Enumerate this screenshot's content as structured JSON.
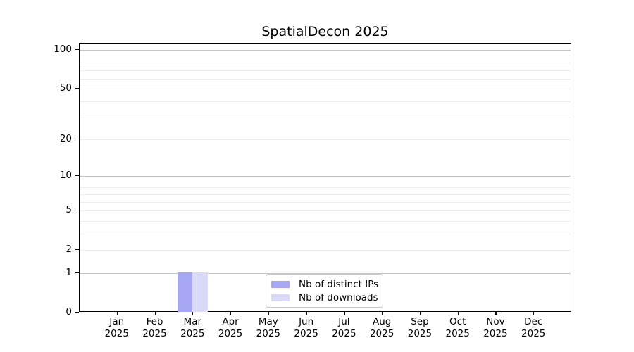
{
  "chart_data": {
    "type": "bar",
    "title": "SpatialDecon 2025",
    "x_months": [
      "Jan",
      "Feb",
      "Mar",
      "Apr",
      "May",
      "Jun",
      "Jul",
      "Aug",
      "Sep",
      "Oct",
      "Nov",
      "Dec"
    ],
    "x_year": "2025",
    "categories": [
      "Jan 2025",
      "Feb 2025",
      "Mar 2025",
      "Apr 2025",
      "May 2025",
      "Jun 2025",
      "Jul 2025",
      "Aug 2025",
      "Sep 2025",
      "Oct 2025",
      "Nov 2025",
      "Dec 2025"
    ],
    "series": [
      {
        "name": "Nb of distinct IPs",
        "color": "#a6a6f2",
        "values": [
          0,
          0,
          1,
          0,
          0,
          0,
          0,
          0,
          0,
          0,
          0,
          0
        ]
      },
      {
        "name": "Nb of downloads",
        "color": "#dadaf8",
        "values": [
          0,
          0,
          1,
          0,
          0,
          0,
          0,
          0,
          0,
          0,
          0,
          0
        ]
      }
    ],
    "y_ticks": [
      0,
      1,
      2,
      5,
      10,
      20,
      50,
      100
    ],
    "y_scale": "log10(value+1)",
    "ylim": [
      0,
      112
    ],
    "xlabel": "",
    "ylabel": "",
    "grid": "on",
    "legend_position": "lower center",
    "colors": {
      "major_grid": "#c4c4c4",
      "minor_grid": "#ededed",
      "spine": "#000000",
      "background": "#ffffff"
    }
  },
  "legend": {
    "items": [
      {
        "label": "Nb of distinct IPs"
      },
      {
        "label": "Nb of downloads"
      }
    ]
  }
}
